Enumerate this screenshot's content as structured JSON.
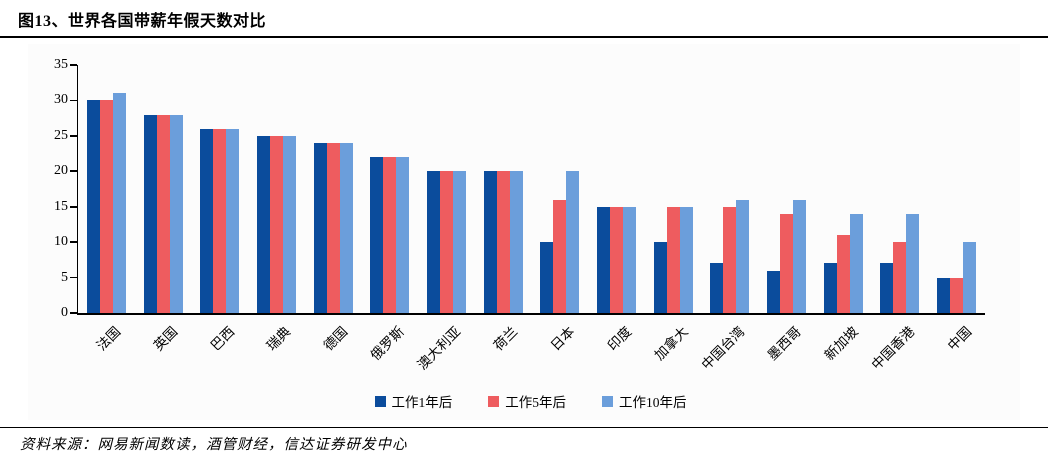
{
  "title": "图13、世界各国带薪年假天数对比",
  "footer": {
    "source_text": "资料来源：网易新闻数读，酒管财经，信达证券研发中心"
  },
  "colors": {
    "series_1": "#0b4c9c",
    "series_2": "#ee5c5f",
    "series_3": "#6b9edb",
    "axis": "#000000"
  },
  "chart_data": {
    "type": "bar",
    "title": "图13、世界各国带薪年假天数对比",
    "categories": [
      "法国",
      "英国",
      "巴西",
      "瑞典",
      "德国",
      "俄罗斯",
      "澳大利亚",
      "荷兰",
      "日本",
      "印度",
      "加拿大",
      "中国台湾",
      "墨西哥",
      "新加坡",
      "中国香港",
      "中国"
    ],
    "series": [
      {
        "name": "工作1年后",
        "color": "#0b4c9c",
        "values": [
          30,
          28,
          26,
          25,
          24,
          22,
          20,
          20,
          10,
          15,
          10,
          7,
          6,
          7,
          7,
          5
        ]
      },
      {
        "name": "工作5年后",
        "color": "#ee5c5f",
        "values": [
          30,
          28,
          26,
          25,
          24,
          22,
          20,
          20,
          16,
          15,
          15,
          15,
          14,
          11,
          10,
          5
        ]
      },
      {
        "name": "工作10年后",
        "color": "#6b9edb",
        "values": [
          31,
          28,
          26,
          25,
          24,
          22,
          20,
          20,
          20,
          15,
          15,
          16,
          16,
          14,
          14,
          10
        ]
      }
    ],
    "xlabel": "",
    "ylabel": "",
    "ylim": [
      0,
      35
    ],
    "ytick_step": 5,
    "grid": false,
    "legend_position": "bottom"
  }
}
